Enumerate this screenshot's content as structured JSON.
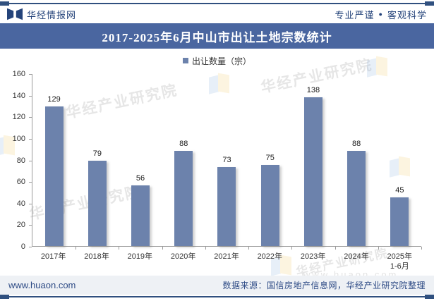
{
  "header": {
    "brand": "华经情报网",
    "tagline_left": "专业严谨",
    "tagline_sep": "●",
    "tagline_right": "客观科学"
  },
  "title": "2017-2025年6月中山市出让土地宗数统计",
  "chart_data": {
    "type": "bar",
    "title": "2017-2025年6月中山市出让土地宗数统计",
    "series_name": "出让数量（宗）",
    "categories": [
      "2017年",
      "2018年",
      "2019年",
      "2020年",
      "2021年",
      "2022年",
      "2023年",
      "2024年",
      "2025年"
    ],
    "category_sublabels": [
      "",
      "",
      "",
      "",
      "",
      "",
      "",
      "",
      "1-6月"
    ],
    "values": [
      129,
      79,
      56,
      88,
      73,
      75,
      138,
      88,
      45
    ],
    "ylim": [
      0,
      160
    ],
    "ytick_step": 20,
    "xlabel": "",
    "ylabel": "",
    "grid": false,
    "legend_position": "top",
    "bar_color": "#6c82ac"
  },
  "legend": {
    "label": "出让数量（宗）"
  },
  "watermark": {
    "text": "华经产业研究院",
    "url": "www.huaon.com"
  },
  "footer": {
    "site": "www.huaon.com",
    "source": "数据来源：国信房地产信息网，华经产业研究院整理"
  },
  "colors": {
    "bar": "#6c82ac",
    "banner": "#4a66a0",
    "navy_text": "#24437a",
    "rule": "#30507f",
    "footer_bg": "#eef1f5",
    "axis": "#9b9b9b"
  }
}
